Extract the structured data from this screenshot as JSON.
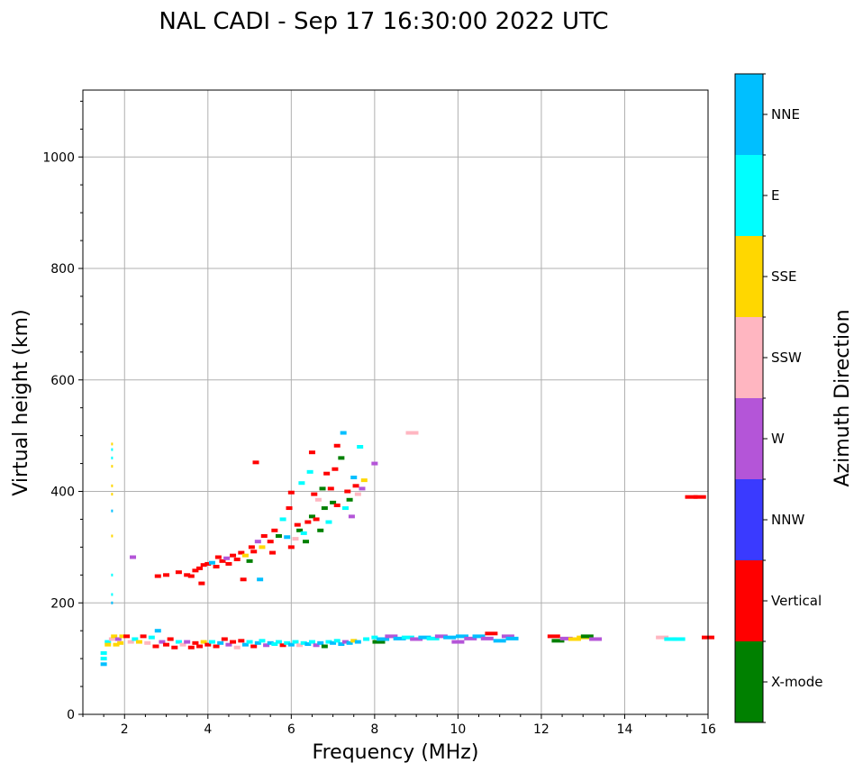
{
  "chart_data": {
    "type": "scatter",
    "title": "NAL CADI - Sep 17 16:30:00 2022 UTC",
    "xlabel": "Frequency (MHz)",
    "ylabel": "Virtual height (km)",
    "xlim": [
      1,
      16
    ],
    "ylim": [
      0,
      1120
    ],
    "xticks": [
      2,
      4,
      6,
      8,
      10,
      12,
      14,
      16
    ],
    "yticks": [
      0,
      200,
      400,
      600,
      800,
      1000
    ],
    "grid": true,
    "colorbar": {
      "title": "Azimuth Direction",
      "categories": [
        "X-mode",
        "Vertical",
        "NNW",
        "W",
        "SSW",
        "SSE",
        "E",
        "NNE"
      ],
      "colors": [
        "#008000",
        "#ff0000",
        "#3a3aff",
        "#b455d8",
        "#ffb6c1",
        "#ffd700",
        "#00ffff",
        "#00bfff"
      ]
    },
    "points": [
      [
        1.5,
        90,
        "NNE"
      ],
      [
        1.5,
        100,
        "E"
      ],
      [
        1.5,
        110,
        "E"
      ],
      [
        1.6,
        130,
        "E"
      ],
      [
        1.6,
        125,
        "SSE"
      ],
      [
        1.7,
        135,
        "SSW"
      ],
      [
        1.75,
        140,
        "SSE"
      ],
      [
        1.8,
        125,
        "SSE"
      ],
      [
        1.85,
        135,
        "W"
      ],
      [
        1.95,
        140,
        "SSE"
      ],
      [
        1.9,
        128,
        "SSE"
      ],
      [
        2.05,
        140,
        "Vertical"
      ],
      [
        2.15,
        130,
        "SSW"
      ],
      [
        2.25,
        135,
        "E"
      ],
      [
        2.35,
        130,
        "SSE"
      ],
      [
        2.45,
        140,
        "Vertical"
      ],
      [
        2.55,
        128,
        "SSW"
      ],
      [
        2.65,
        138,
        "E"
      ],
      [
        2.75,
        122,
        "Vertical"
      ],
      [
        2.8,
        150,
        "NNE"
      ],
      [
        2.9,
        130,
        "W"
      ],
      [
        3.0,
        125,
        "Vertical"
      ],
      [
        3.1,
        135,
        "Vertical"
      ],
      [
        3.2,
        120,
        "Vertical"
      ],
      [
        3.3,
        130,
        "E"
      ],
      [
        3.4,
        125,
        "SSW"
      ],
      [
        3.5,
        130,
        "W"
      ],
      [
        3.6,
        120,
        "Vertical"
      ],
      [
        3.7,
        128,
        "Vertical"
      ],
      [
        3.8,
        122,
        "Vertical"
      ],
      [
        3.9,
        130,
        "SSE"
      ],
      [
        4.0,
        125,
        "Vertical"
      ],
      [
        4.1,
        130,
        "E"
      ],
      [
        4.2,
        122,
        "Vertical"
      ],
      [
        4.3,
        128,
        "NNE"
      ],
      [
        4.4,
        135,
        "Vertical"
      ],
      [
        4.5,
        125,
        "W"
      ],
      [
        4.6,
        130,
        "Vertical"
      ],
      [
        4.7,
        120,
        "SSW"
      ],
      [
        4.8,
        132,
        "Vertical"
      ],
      [
        4.9,
        125,
        "NNE"
      ],
      [
        5.0,
        130,
        "E"
      ],
      [
        5.1,
        122,
        "Vertical"
      ],
      [
        5.2,
        128,
        "NNE"
      ],
      [
        5.3,
        132,
        "E"
      ],
      [
        5.4,
        124,
        "W"
      ],
      [
        5.5,
        128,
        "NNE"
      ],
      [
        5.6,
        126,
        "E"
      ],
      [
        5.7,
        130,
        "E"
      ],
      [
        5.8,
        124,
        "Vertical"
      ],
      [
        5.9,
        128,
        "E"
      ],
      [
        6.0,
        125,
        "NNE"
      ],
      [
        6.1,
        130,
        "E"
      ],
      [
        6.2,
        124,
        "SSW"
      ],
      [
        6.3,
        128,
        "E"
      ],
      [
        6.4,
        126,
        "NNE"
      ],
      [
        6.5,
        130,
        "E"
      ],
      [
        6.6,
        124,
        "W"
      ],
      [
        6.7,
        128,
        "NNE"
      ],
      [
        6.8,
        122,
        "X-mode"
      ],
      [
        6.9,
        130,
        "E"
      ],
      [
        7.0,
        128,
        "NNE"
      ],
      [
        7.1,
        132,
        "E"
      ],
      [
        7.2,
        126,
        "NNE"
      ],
      [
        7.3,
        130,
        "W"
      ],
      [
        7.4,
        128,
        "NNE"
      ],
      [
        7.5,
        132,
        "SSE"
      ],
      [
        7.6,
        130,
        "NNE"
      ],
      [
        7.8,
        135,
        "E"
      ],
      [
        8.0,
        138,
        "E"
      ],
      [
        8.1,
        130,
        "X-mode"
      ],
      [
        8.2,
        135,
        "NNE"
      ],
      [
        8.4,
        140,
        "W"
      ],
      [
        8.6,
        136,
        "NNE"
      ],
      [
        8.8,
        138,
        "E"
      ],
      [
        9.0,
        135,
        "W"
      ],
      [
        9.2,
        138,
        "NNE"
      ],
      [
        9.4,
        136,
        "E"
      ],
      [
        9.6,
        140,
        "W"
      ],
      [
        9.8,
        138,
        "NNE"
      ],
      [
        10.0,
        130,
        "W"
      ],
      [
        10.1,
        140,
        "NNE"
      ],
      [
        10.3,
        136,
        "W"
      ],
      [
        10.5,
        140,
        "NNE"
      ],
      [
        10.7,
        136,
        "W"
      ],
      [
        10.8,
        145,
        "Vertical"
      ],
      [
        11.0,
        132,
        "NNE"
      ],
      [
        11.2,
        140,
        "W"
      ],
      [
        11.3,
        136,
        "NNE"
      ],
      [
        12.3,
        140,
        "Vertical"
      ],
      [
        12.4,
        132,
        "X-mode"
      ],
      [
        12.6,
        136,
        "W"
      ],
      [
        12.8,
        135,
        "SSE"
      ],
      [
        13.0,
        138,
        "SSE"
      ],
      [
        13.1,
        140,
        "X-mode"
      ],
      [
        13.3,
        135,
        "W"
      ],
      [
        14.9,
        138,
        "SSW"
      ],
      [
        15.1,
        135,
        "E"
      ],
      [
        15.3,
        135,
        "E"
      ],
      [
        16.0,
        138,
        "Vertical"
      ],
      [
        1.7,
        200,
        "NNE"
      ],
      [
        1.7,
        215,
        "E"
      ],
      [
        1.7,
        250,
        "E"
      ],
      [
        1.7,
        320,
        "SSE"
      ],
      [
        1.7,
        365,
        "NNE"
      ],
      [
        1.7,
        395,
        "SSE"
      ],
      [
        1.7,
        410,
        "SSE"
      ],
      [
        1.7,
        445,
        "SSE"
      ],
      [
        1.7,
        460,
        "E"
      ],
      [
        1.7,
        475,
        "E"
      ],
      [
        1.7,
        485,
        "SSE"
      ],
      [
        2.2,
        282,
        "W"
      ],
      [
        2.8,
        248,
        "Vertical"
      ],
      [
        3.0,
        250,
        "Vertical"
      ],
      [
        3.3,
        255,
        "Vertical"
      ],
      [
        3.5,
        250,
        "Vertical"
      ],
      [
        3.6,
        248,
        "Vertical"
      ],
      [
        3.7,
        258,
        "Vertical"
      ],
      [
        3.8,
        262,
        "Vertical"
      ],
      [
        3.85,
        235,
        "Vertical"
      ],
      [
        3.9,
        268,
        "Vertical"
      ],
      [
        4.0,
        270,
        "Vertical"
      ],
      [
        4.1,
        272,
        "NNE"
      ],
      [
        4.2,
        265,
        "Vertical"
      ],
      [
        4.25,
        282,
        "Vertical"
      ],
      [
        4.35,
        275,
        "Vertical"
      ],
      [
        4.45,
        280,
        "W"
      ],
      [
        4.5,
        270,
        "Vertical"
      ],
      [
        4.6,
        285,
        "Vertical"
      ],
      [
        4.7,
        278,
        "Vertical"
      ],
      [
        4.8,
        290,
        "Vertical"
      ],
      [
        4.85,
        242,
        "Vertical"
      ],
      [
        4.9,
        285,
        "SSE"
      ],
      [
        5.0,
        275,
        "X-mode"
      ],
      [
        5.05,
        300,
        "Vertical"
      ],
      [
        5.1,
        292,
        "Vertical"
      ],
      [
        5.15,
        452,
        "Vertical"
      ],
      [
        5.2,
        310,
        "W"
      ],
      [
        5.25,
        242,
        "NNE"
      ],
      [
        5.3,
        300,
        "SSE"
      ],
      [
        5.35,
        320,
        "Vertical"
      ],
      [
        5.5,
        310,
        "Vertical"
      ],
      [
        5.55,
        290,
        "Vertical"
      ],
      [
        5.6,
        330,
        "Vertical"
      ],
      [
        5.7,
        320,
        "X-mode"
      ],
      [
        5.8,
        350,
        "E"
      ],
      [
        5.9,
        318,
        "NNE"
      ],
      [
        5.95,
        370,
        "Vertical"
      ],
      [
        6.0,
        300,
        "Vertical"
      ],
      [
        6.0,
        398,
        "Vertical"
      ],
      [
        6.1,
        315,
        "SSW"
      ],
      [
        6.15,
        340,
        "Vertical"
      ],
      [
        6.2,
        330,
        "X-mode"
      ],
      [
        6.25,
        415,
        "E"
      ],
      [
        6.3,
        325,
        "E"
      ],
      [
        6.35,
        310,
        "X-mode"
      ],
      [
        6.4,
        345,
        "Vertical"
      ],
      [
        6.45,
        435,
        "E"
      ],
      [
        6.5,
        355,
        "X-mode"
      ],
      [
        6.5,
        470,
        "Vertical"
      ],
      [
        6.55,
        395,
        "Vertical"
      ],
      [
        6.6,
        350,
        "Vertical"
      ],
      [
        6.65,
        385,
        "SSW"
      ],
      [
        6.7,
        330,
        "X-mode"
      ],
      [
        6.75,
        405,
        "X-mode"
      ],
      [
        6.8,
        370,
        "X-mode"
      ],
      [
        6.85,
        432,
        "Vertical"
      ],
      [
        6.9,
        345,
        "E"
      ],
      [
        6.95,
        405,
        "Vertical"
      ],
      [
        7.0,
        380,
        "X-mode"
      ],
      [
        7.05,
        440,
        "Vertical"
      ],
      [
        7.1,
        375,
        "Vertical"
      ],
      [
        7.1,
        482,
        "Vertical"
      ],
      [
        7.2,
        460,
        "X-mode"
      ],
      [
        7.25,
        505,
        "NNE"
      ],
      [
        7.3,
        370,
        "E"
      ],
      [
        7.35,
        400,
        "Vertical"
      ],
      [
        7.4,
        385,
        "X-mode"
      ],
      [
        7.45,
        355,
        "W"
      ],
      [
        7.5,
        425,
        "NNE"
      ],
      [
        7.55,
        410,
        "Vertical"
      ],
      [
        7.6,
        395,
        "SSW"
      ],
      [
        7.65,
        480,
        "E"
      ],
      [
        7.7,
        405,
        "W"
      ],
      [
        7.75,
        420,
        "SSE"
      ],
      [
        8.0,
        450,
        "W"
      ],
      [
        8.9,
        505,
        "SSW"
      ],
      [
        15.6,
        390,
        "Vertical"
      ],
      [
        15.8,
        390,
        "Vertical"
      ]
    ]
  }
}
